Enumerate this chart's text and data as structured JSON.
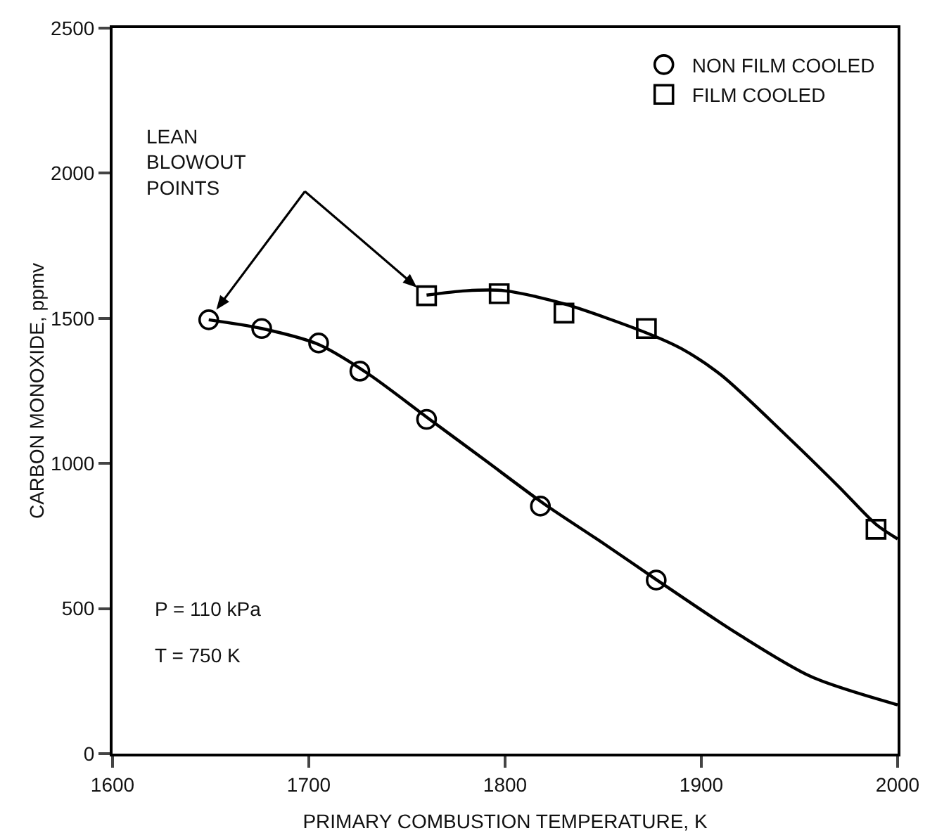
{
  "chart_data": {
    "type": "scatter",
    "xlabel": "PRIMARY COMBUSTION TEMPERATURE, K",
    "ylabel": "CARBON MONOXIDE, ppmv",
    "xlim": [
      1600,
      2000
    ],
    "xticks": [
      1600,
      1700,
      1800,
      1900,
      2000
    ],
    "ylim": [
      0,
      2500
    ],
    "yticks": [
      0,
      500,
      1000,
      1500,
      2000,
      2500
    ],
    "grid": false,
    "legend": "top right",
    "series": [
      {
        "name": "NON FILM COOLED",
        "type": "scatter",
        "marker": "circle",
        "color": "#000000",
        "x": [
          1649,
          1676,
          1705,
          1726,
          1760,
          1818,
          1877
        ],
        "values": [
          1495,
          1465,
          1415,
          1318,
          1152,
          853,
          598
        ]
      },
      {
        "name": "FILM COOLED",
        "type": "scatter",
        "marker": "square",
        "color": "#000000",
        "x": [
          1760,
          1797,
          1830,
          1872,
          1989
        ],
        "values": [
          1578,
          1585,
          1518,
          1465,
          773
        ]
      },
      {
        "type": "line",
        "marker": "none",
        "color": "#000000",
        "x": [
          1649,
          1676,
          1705,
          1730,
          1760,
          1790,
          1820,
          1850,
          1877,
          1918,
          1956,
          2000
        ],
        "values": [
          1495,
          1465,
          1410,
          1310,
          1160,
          1010,
          860,
          725,
          600,
          415,
          265,
          168
        ]
      },
      {
        "type": "line",
        "marker": "none",
        "color": "#000000",
        "x": [
          1760,
          1780,
          1800,
          1830,
          1872,
          1890,
          1910,
          1943,
          1970,
          1989,
          2000
        ],
        "values": [
          1580,
          1595,
          1595,
          1550,
          1450,
          1395,
          1305,
          1098,
          920,
          790,
          740
        ]
      }
    ],
    "annotations": [
      "LEAN\nBLOWOUT\nPOINTS",
      "P = 110 kPa",
      "T = 750 K"
    ]
  }
}
